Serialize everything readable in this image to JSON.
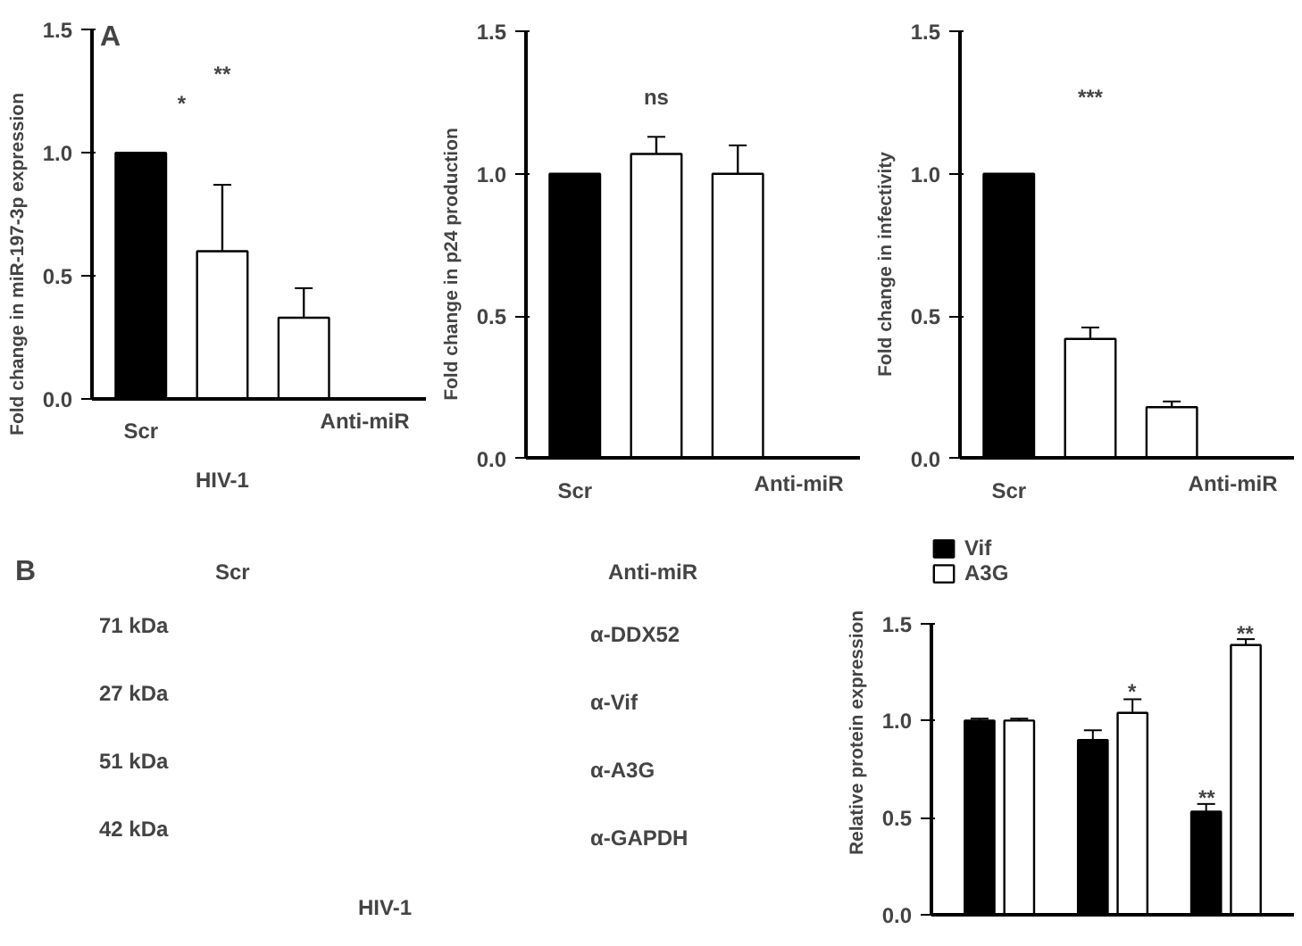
{
  "chart_data": [
    {
      "type": "bar",
      "ylabel": "Fold change in miR-197-3p expression",
      "categories": [
        "Scr",
        null,
        null
      ],
      "values": [
        1.0,
        0.6,
        0.33
      ],
      "colors": [
        "#000000",
        "#ffffff",
        "#ffffff"
      ],
      "errors": [
        null,
        0.27,
        0.12
      ],
      "ylim": [
        0,
        1.5
      ],
      "yticks": [
        {
          "value": 0,
          "label": "0.0"
        },
        {
          "value": 0.5,
          "label": "0.5"
        },
        {
          "value": 1,
          "label": "1.0"
        },
        {
          "value": 1.5,
          "label": "1.5"
        }
      ],
      "grid": false,
      "annotations": [
        "A",
        "*",
        "**",
        "Anti-miR",
        "HIV-1"
      ]
    },
    {
      "type": "bar",
      "ylabel": "Fold change in p24 production",
      "categories": [
        "Scr",
        null,
        null
      ],
      "values": [
        1.0,
        1.07,
        1.0
      ],
      "colors": [
        "#000000",
        "#ffffff",
        "#ffffff"
      ],
      "errors": [
        null,
        0.06,
        0.1
      ],
      "ylim": [
        0,
        1.5
      ],
      "yticks": [
        {
          "value": 0,
          "label": "0.0"
        },
        {
          "value": 0.5,
          "label": "0.5"
        },
        {
          "value": 1,
          "label": "1.0"
        },
        {
          "value": 1.5,
          "label": "1.5"
        }
      ],
      "grid": false,
      "annotations": [
        "ns",
        "Anti-miR"
      ]
    },
    {
      "type": "bar",
      "ylabel": "Fold change in infectivity",
      "categories": [
        "Scr",
        null,
        null
      ],
      "values": [
        1.0,
        0.42,
        0.18
      ],
      "colors": [
        "#000000",
        "#ffffff",
        "#ffffff"
      ],
      "errors": [
        null,
        0.04,
        0.02
      ],
      "ylim": [
        0,
        1.5
      ],
      "yticks": [
        {
          "value": 0,
          "label": "0.0"
        },
        {
          "value": 0.5,
          "label": "0.5"
        },
        {
          "value": 1,
          "label": "1.0"
        },
        {
          "value": 1.5,
          "label": "1.5"
        }
      ],
      "grid": false,
      "annotations": [
        "***",
        "Anti-miR"
      ]
    },
    {
      "type": "other",
      "annotations": [
        "B",
        "Scr",
        "Anti-miR",
        "71 kDa",
        "27 kDa",
        "51 kDa",
        "42 kDa",
        "α-DDX52",
        "α-Vif",
        "α-A3G",
        "α-GAPDH",
        "HIV-1"
      ]
    },
    {
      "type": "bar",
      "ylabel": "Relative protein expression",
      "categories": [
        null,
        null,
        null
      ],
      "series": [
        {
          "name": "Vif",
          "color": "#000000",
          "values": [
            1.0,
            0.9,
            0.53
          ],
          "errors": [
            0.01,
            0.05,
            0.04
          ]
        },
        {
          "name": "A3G",
          "color": "#ffffff",
          "values": [
            1.0,
            1.04,
            1.39
          ],
          "errors": [
            0.01,
            0.07,
            0.03
          ]
        }
      ],
      "ylim": [
        0,
        1.5
      ],
      "yticks": [
        {
          "value": 0,
          "label": "0.0"
        },
        {
          "value": 0.5,
          "label": "0.5"
        },
        {
          "value": 1,
          "label": "1.0"
        },
        {
          "value": 1.5,
          "label": "1.5"
        }
      ],
      "grid": false,
      "legend": "top left",
      "annotations": [
        "*",
        "**",
        "**"
      ]
    }
  ]
}
